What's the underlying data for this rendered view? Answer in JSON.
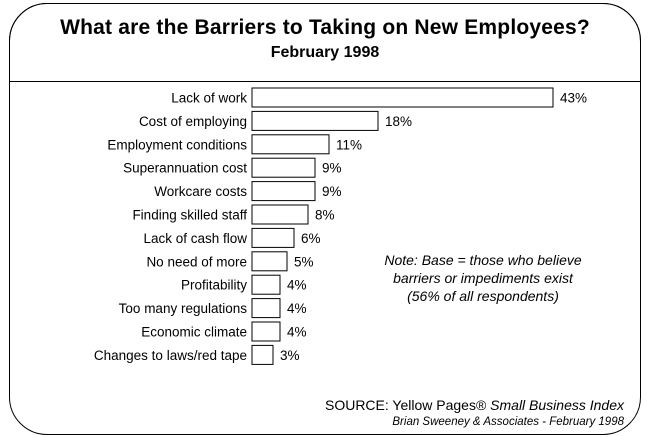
{
  "title": "What are the Barriers to Taking on New Employees?",
  "subtitle": "February 1998",
  "note": "Note: Base = those who believe barriers or impediments exist (56% of all respondents)",
  "source": {
    "prefix": "SOURCE: Yellow Pages®",
    "publication": "Small Business Index",
    "credit": "Brian Sweeney & Associates - February 1998"
  },
  "chart_data": {
    "type": "bar",
    "orientation": "horizontal",
    "categories": [
      "Lack of work",
      "Cost of employing",
      "Employment conditions",
      "Superannuation cost",
      "Workcare costs",
      "Finding skilled staff",
      "Lack of cash flow",
      "No need of more",
      "Profitability",
      "Too many regulations",
      "Economic climate",
      "Changes to laws/red tape"
    ],
    "values": [
      43,
      18,
      11,
      9,
      9,
      8,
      6,
      5,
      4,
      4,
      4,
      3
    ],
    "value_suffix": "%",
    "xlim": [
      0,
      43
    ],
    "grid": false,
    "legend": false,
    "colors": {
      "bar_fill": "#ffffff",
      "bar_stroke": "#000000",
      "text": "#000000"
    }
  }
}
